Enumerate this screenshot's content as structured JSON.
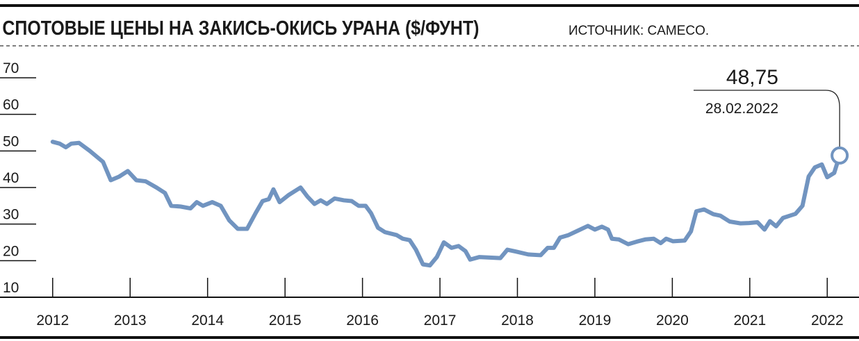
{
  "chart_data": {
    "type": "line",
    "title": "СПОТОВЫЕ ЦЕНЫ НА ЗАКИСЬ-ОКИСЬ УРАНА ($/ФУНТ)",
    "source": "ИСТОЧНИК: CAMECO.",
    "x": [
      2012.0,
      2012.09,
      2012.17,
      2012.24,
      2012.34,
      2012.48,
      2012.65,
      2012.75,
      2012.86,
      2012.97,
      2013.08,
      2013.2,
      2013.34,
      2013.45,
      2013.53,
      2013.65,
      2013.78,
      2013.86,
      2013.94,
      2014.06,
      2014.17,
      2014.28,
      2014.39,
      2014.51,
      2014.62,
      2014.71,
      2014.79,
      2014.85,
      2014.93,
      2015.05,
      2015.2,
      2015.29,
      2015.38,
      2015.46,
      2015.54,
      2015.64,
      2015.76,
      2015.86,
      2015.95,
      2016.04,
      2016.11,
      2016.2,
      2016.29,
      2016.44,
      2016.52,
      2016.61,
      2016.69,
      2016.78,
      2016.87,
      2016.96,
      2017.05,
      2017.15,
      2017.24,
      2017.33,
      2017.39,
      2017.51,
      2017.78,
      2017.87,
      2017.98,
      2018.14,
      2018.3,
      2018.39,
      2018.47,
      2018.55,
      2018.66,
      2018.79,
      2018.91,
      2019.0,
      2019.09,
      2019.17,
      2019.22,
      2019.31,
      2019.43,
      2019.54,
      2019.65,
      2019.76,
      2019.85,
      2019.92,
      2020.01,
      2020.16,
      2020.24,
      2020.31,
      2020.41,
      2020.53,
      2020.62,
      2020.74,
      2020.88,
      2020.99,
      2021.1,
      2021.19,
      2021.26,
      2021.34,
      2021.43,
      2021.59,
      2021.68,
      2021.76,
      2021.84,
      2021.93,
      2022.0,
      2022.09,
      2022.16
    ],
    "values": [
      52.5,
      52,
      51,
      52,
      52.2,
      50,
      47,
      42,
      43,
      44.5,
      42,
      41.7,
      40,
      38.5,
      35,
      34.8,
      34.3,
      36,
      35,
      36,
      35,
      31,
      28.7,
      28.7,
      33,
      36.3,
      36.8,
      39.5,
      36,
      38,
      40,
      37.5,
      35.5,
      36.5,
      35.5,
      37,
      36.5,
      36.3,
      35,
      35,
      33,
      29,
      27.8,
      27,
      26,
      25.6,
      23,
      19,
      18.7,
      21,
      25,
      23.5,
      24,
      22.6,
      20.3,
      21,
      20.7,
      23,
      22.5,
      21.7,
      21.5,
      23.5,
      23.5,
      26.3,
      27,
      28.3,
      29.5,
      28.5,
      29.3,
      28.5,
      26,
      25.8,
      24.5,
      25.2,
      25.8,
      26,
      24.8,
      26,
      25.3,
      25.5,
      28,
      33.5,
      34,
      32.7,
      32.3,
      30.7,
      30.2,
      30.3,
      30.5,
      28.5,
      30.8,
      29.4,
      31.7,
      32.8,
      35,
      43,
      45.5,
      46.3,
      42.8,
      44,
      48.75
    ],
    "color": "#7194c0",
    "annotation": {
      "label": "48,75",
      "date": "28.02.2022"
    },
    "xlim": [
      2011.32,
      2022.41
    ],
    "xticks": [
      2012,
      2013,
      2014,
      2015,
      2016,
      2017,
      2018,
      2019,
      2020,
      2021,
      2022
    ],
    "ylim": [
      10,
      70
    ],
    "yticks": [
      10,
      20,
      30,
      40,
      50,
      60,
      70
    ]
  }
}
